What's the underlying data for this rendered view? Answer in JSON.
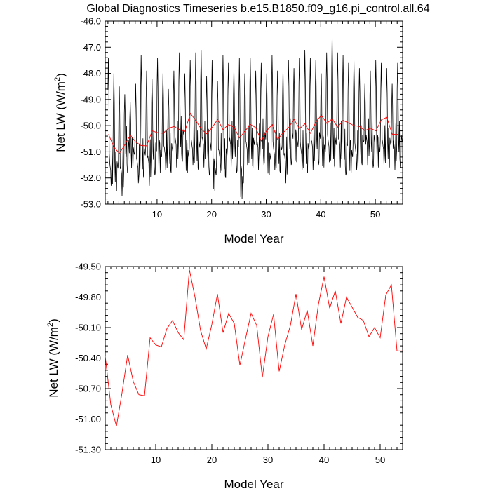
{
  "title": "Global Diagnostics Timeseries b.e15.B1850.f09_g16.pi_control.all.64",
  "chart_data": [
    {
      "type": "line",
      "xlabel": "Model Year",
      "ylabel_main": "Net LW (W/m",
      "ylabel_sup": "2",
      "ylabel_close": ")",
      "xlim": [
        0.5,
        55
      ],
      "ylim": [
        -53.0,
        -46.0
      ],
      "xticks": [
        10,
        20,
        30,
        40,
        50
      ],
      "yticks": [
        -53.0,
        -52.0,
        -51.0,
        -50.0,
        -49.0,
        -48.0,
        -47.0,
        -46.0
      ],
      "ytick_labels": [
        "-53.0",
        "-52.0",
        "-51.0",
        "-50.0",
        "-49.0",
        "-48.0",
        "-47.0",
        "-46.0"
      ],
      "series": [
        {
          "color": "#000000",
          "monthly_peaks": [
            -47.4,
            -48.0,
            -48.5,
            -48.8,
            -49.1,
            -48.4,
            -47.3,
            -47.9,
            -48.2,
            -47.4,
            -48.0,
            -48.6,
            -47.9,
            -47.2,
            -48.0,
            -47.5,
            -47.2,
            -47.1,
            -48.1,
            -47.5,
            -48.3,
            -47.3,
            -47.6,
            -47.8,
            -47.4,
            -48.0,
            -47.4,
            -47.9,
            -47.6,
            -48.0,
            -47.3,
            -47.9,
            -47.8,
            -47.5,
            -47.8,
            -47.4,
            -47.1,
            -47.4,
            -47.5,
            -48.0,
            -47.2,
            -46.5,
            -47.2,
            -47.3,
            -47.6,
            -47.5,
            -47.8,
            -48.4,
            -47.9,
            -47.5,
            -47.6,
            -47.8,
            -48.4,
            -47.6
          ],
          "monthly_troughs": [
            -52.3,
            -52.5,
            -52.7,
            -51.8,
            -51.7,
            -52.2,
            -52.0,
            -52.3,
            -51.9,
            -51.8,
            -51.7,
            -51.8,
            -51.6,
            -51.4,
            -51.8,
            -51.5,
            -51.7,
            -51.6,
            -51.9,
            -52.5,
            -51.8,
            -52.0,
            -51.6,
            -51.8,
            -52.8,
            -51.5,
            -51.6,
            -51.7,
            -51.5,
            -51.9,
            -51.7,
            -51.8,
            -52.2,
            -51.5,
            -51.4,
            -51.7,
            -51.8,
            -51.7,
            -51.5,
            -51.6,
            -51.4,
            -51.6,
            -51.6,
            -51.9,
            -51.8,
            -51.7,
            -51.5,
            -51.5,
            -51.6,
            -51.6,
            -51.5,
            -51.6,
            -51.7,
            -51.6
          ]
        },
        {
          "color": "#ff0000",
          "x": [
            1.1,
            2.1,
            3.1,
            4.1,
            5.1,
            6.1,
            7.1,
            8.1,
            9.1,
            10.1,
            11.1,
            12.1,
            13.1,
            14.1,
            15.1,
            16.1,
            17.1,
            18.1,
            19.1,
            20.1,
            21.1,
            22.1,
            23.1,
            24.1,
            25.1,
            26.1,
            27.1,
            28.1,
            29.1,
            30.1,
            31.1,
            32.1,
            33.1,
            34.1,
            35.1,
            36.1,
            37.1,
            38.1,
            39.1,
            40.1,
            41.1,
            42.1,
            43.1,
            44.1,
            45.1,
            46.1,
            47.1,
            48.1,
            49.1,
            50.1,
            51.1,
            52.1,
            53.1,
            54.1
          ],
          "y": [
            -50.33,
            -50.82,
            -51.06,
            -50.73,
            -50.36,
            -50.63,
            -50.76,
            -50.77,
            -50.2,
            -50.27,
            -50.29,
            -50.1,
            -50.03,
            -50.15,
            -50.22,
            -49.53,
            -49.8,
            -50.13,
            -50.31,
            -50.07,
            -49.76,
            -50.15,
            -49.96,
            -50.06,
            -50.47,
            -50.21,
            -49.95,
            -50.08,
            -50.59,
            -50.19,
            -49.96,
            -50.53,
            -50.27,
            -50.08,
            -49.76,
            -50.12,
            -49.93,
            -50.29,
            -49.87,
            -49.6,
            -49.91,
            -49.74,
            -50.06,
            -49.8,
            -49.9,
            -50.0,
            -50.03,
            -50.19,
            -50.1,
            -50.2,
            -49.78,
            -49.68,
            -50.33,
            -50.33
          ]
        }
      ]
    },
    {
      "type": "line",
      "xlabel": "Model Year",
      "ylabel_main": "Net LW (W/m",
      "ylabel_sup": "2",
      "ylabel_close": ")",
      "xlim": [
        1,
        54
      ],
      "ylim": [
        -51.3,
        -49.5
      ],
      "xticks": [
        10,
        20,
        30,
        40,
        50
      ],
      "yticks": [
        -51.3,
        -51.0,
        -50.7,
        -50.4,
        -50.1,
        -49.8,
        -49.5
      ],
      "ytick_labels": [
        "-51.30",
        "-51.00",
        "-50.70",
        "-50.40",
        "-50.10",
        "-49.80",
        "-49.50"
      ],
      "series": [
        {
          "color": "#ff0000",
          "x": [
            1,
            2,
            3,
            4,
            5,
            6,
            7,
            8,
            9,
            10,
            11,
            12,
            13,
            14,
            15,
            16,
            17,
            18,
            19,
            20,
            21,
            22,
            23,
            24,
            25,
            26,
            27,
            28,
            29,
            30,
            31,
            32,
            33,
            34,
            35,
            36,
            37,
            38,
            39,
            40,
            41,
            42,
            43,
            44,
            45,
            46,
            47,
            48,
            49,
            50,
            51,
            52,
            53,
            54
          ],
          "y": [
            -50.38,
            -50.86,
            -51.07,
            -50.74,
            -50.37,
            -50.63,
            -50.76,
            -50.77,
            -50.2,
            -50.27,
            -50.29,
            -50.11,
            -50.03,
            -50.15,
            -50.22,
            -49.53,
            -49.8,
            -50.13,
            -50.31,
            -50.07,
            -49.77,
            -50.15,
            -49.96,
            -50.06,
            -50.47,
            -50.21,
            -49.96,
            -50.08,
            -50.59,
            -50.19,
            -49.97,
            -50.53,
            -50.27,
            -50.08,
            -49.77,
            -50.12,
            -49.93,
            -50.28,
            -49.87,
            -49.6,
            -49.91,
            -49.74,
            -50.06,
            -49.8,
            -49.9,
            -50.0,
            -50.03,
            -50.19,
            -50.1,
            -50.2,
            -49.78,
            -49.68,
            -50.33,
            -50.33
          ]
        }
      ]
    }
  ]
}
